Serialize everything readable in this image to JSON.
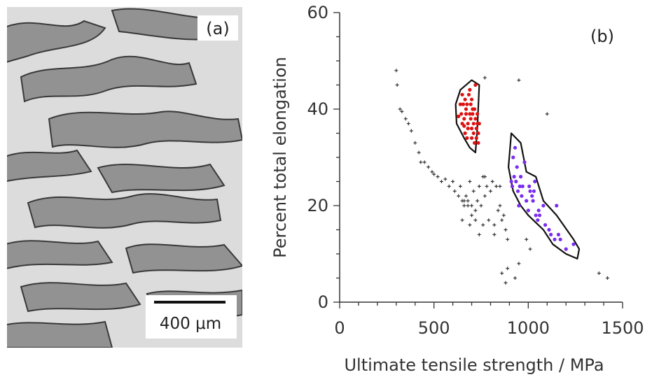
{
  "panel_a": {
    "label": "(a)",
    "scale_bar_label": "400 μm"
  },
  "chart_data": {
    "type": "scatter",
    "panel_label": "(b)",
    "title": "",
    "xlabel": "Ultimate tensile strength / MPa",
    "ylabel": "Percent total elongation",
    "xlim": [
      0,
      1500
    ],
    "ylim": [
      0,
      60
    ],
    "xticks": [
      0,
      500,
      1000,
      1500
    ],
    "yticks": [
      0,
      20,
      40,
      60
    ],
    "grid": false,
    "colors": {
      "red": "#dd1111",
      "blue": "#7a2cf0",
      "black": "#333333",
      "outline": "#111111"
    },
    "series": [
      {
        "marker": "dot",
        "color": "#dd1111",
        "points": [
          [
            630,
            38.5
          ],
          [
            640,
            41
          ],
          [
            645,
            39
          ],
          [
            650,
            43
          ],
          [
            655,
            41
          ],
          [
            660,
            38
          ],
          [
            660,
            36.5
          ],
          [
            665,
            42
          ],
          [
            665,
            35
          ],
          [
            670,
            39
          ],
          [
            675,
            41
          ],
          [
            680,
            37
          ],
          [
            680,
            36
          ],
          [
            685,
            43
          ],
          [
            690,
            39
          ],
          [
            695,
            41
          ],
          [
            695,
            38
          ],
          [
            700,
            36
          ],
          [
            700,
            34
          ],
          [
            705,
            39
          ],
          [
            710,
            37
          ],
          [
            710,
            35
          ],
          [
            715,
            40
          ],
          [
            715,
            33
          ],
          [
            720,
            45
          ],
          [
            720,
            38
          ],
          [
            725,
            36
          ],
          [
            725,
            34
          ],
          [
            730,
            39
          ],
          [
            730,
            37
          ],
          [
            735,
            35
          ],
          [
            735,
            33
          ],
          [
            740,
            37
          ],
          [
            690,
            44
          ],
          [
            705,
            40
          ],
          [
            650,
            37
          ],
          [
            675,
            34
          ],
          [
            700,
            42
          ],
          [
            670,
            40
          ]
        ]
      },
      {
        "marker": "dot",
        "color": "#7a2cf0",
        "points": [
          [
            910,
            25
          ],
          [
            915,
            24
          ],
          [
            920,
            30
          ],
          [
            925,
            26
          ],
          [
            930,
            32
          ],
          [
            935,
            25
          ],
          [
            940,
            28
          ],
          [
            945,
            23
          ],
          [
            950,
            20
          ],
          [
            955,
            24
          ],
          [
            960,
            26
          ],
          [
            965,
            22
          ],
          [
            970,
            24
          ],
          [
            980,
            29
          ],
          [
            990,
            21
          ],
          [
            1000,
            19
          ],
          [
            1005,
            24
          ],
          [
            1010,
            23
          ],
          [
            1020,
            22
          ],
          [
            1025,
            21
          ],
          [
            1030,
            23
          ],
          [
            1040,
            18
          ],
          [
            1050,
            17
          ],
          [
            1060,
            18
          ],
          [
            1080,
            20
          ],
          [
            1090,
            16
          ],
          [
            1110,
            15
          ],
          [
            1120,
            14
          ],
          [
            1140,
            13
          ],
          [
            1150,
            20
          ],
          [
            1160,
            14
          ],
          [
            1170,
            13
          ],
          [
            1200,
            11
          ],
          [
            1240,
            12
          ],
          [
            1035,
            25
          ],
          [
            1055,
            19
          ]
        ]
      },
      {
        "marker": "plus",
        "color": "#333333",
        "points": [
          [
            300,
            48
          ],
          [
            305,
            45
          ],
          [
            320,
            40
          ],
          [
            330,
            39.5
          ],
          [
            350,
            38
          ],
          [
            365,
            37
          ],
          [
            380,
            35.5
          ],
          [
            400,
            33
          ],
          [
            420,
            31
          ],
          [
            430,
            29
          ],
          [
            450,
            29
          ],
          [
            470,
            28
          ],
          [
            490,
            27
          ],
          [
            500,
            26.5
          ],
          [
            520,
            26
          ],
          [
            540,
            25
          ],
          [
            560,
            25.5
          ],
          [
            580,
            24
          ],
          [
            600,
            25
          ],
          [
            610,
            23
          ],
          [
            630,
            22
          ],
          [
            640,
            24
          ],
          [
            650,
            21
          ],
          [
            660,
            20
          ],
          [
            670,
            22
          ],
          [
            680,
            21
          ],
          [
            690,
            25
          ],
          [
            700,
            20
          ],
          [
            710,
            23
          ],
          [
            720,
            19
          ],
          [
            730,
            21
          ],
          [
            740,
            24
          ],
          [
            750,
            20
          ],
          [
            760,
            26
          ],
          [
            770,
            22
          ],
          [
            780,
            24
          ],
          [
            790,
            17
          ],
          [
            800,
            23
          ],
          [
            810,
            25
          ],
          [
            820,
            16
          ],
          [
            830,
            24
          ],
          [
            840,
            19
          ],
          [
            850,
            20
          ],
          [
            860,
            17
          ],
          [
            870,
            18
          ],
          [
            880,
            15
          ],
          [
            890,
            13
          ],
          [
            650,
            17
          ],
          [
            690,
            16
          ],
          [
            700,
            18
          ],
          [
            720,
            17
          ],
          [
            760,
            16
          ],
          [
            820,
            14
          ],
          [
            740,
            14
          ],
          [
            860,
            6
          ],
          [
            880,
            4
          ],
          [
            890,
            7
          ],
          [
            950,
            8
          ],
          [
            930,
            5
          ],
          [
            990,
            13
          ],
          [
            1010,
            11
          ],
          [
            1100,
            39
          ],
          [
            950,
            46
          ],
          [
            770,
            46.5
          ],
          [
            1375,
            6
          ],
          [
            1420,
            5
          ],
          [
            660,
            21
          ],
          [
            770,
            26
          ],
          [
            680,
            20
          ],
          [
            850,
            24
          ]
        ]
      }
    ],
    "regions": [
      {
        "name": "",
        "color": "#111111"
      },
      {
        "name": "",
        "color": "#111111"
      }
    ]
  }
}
